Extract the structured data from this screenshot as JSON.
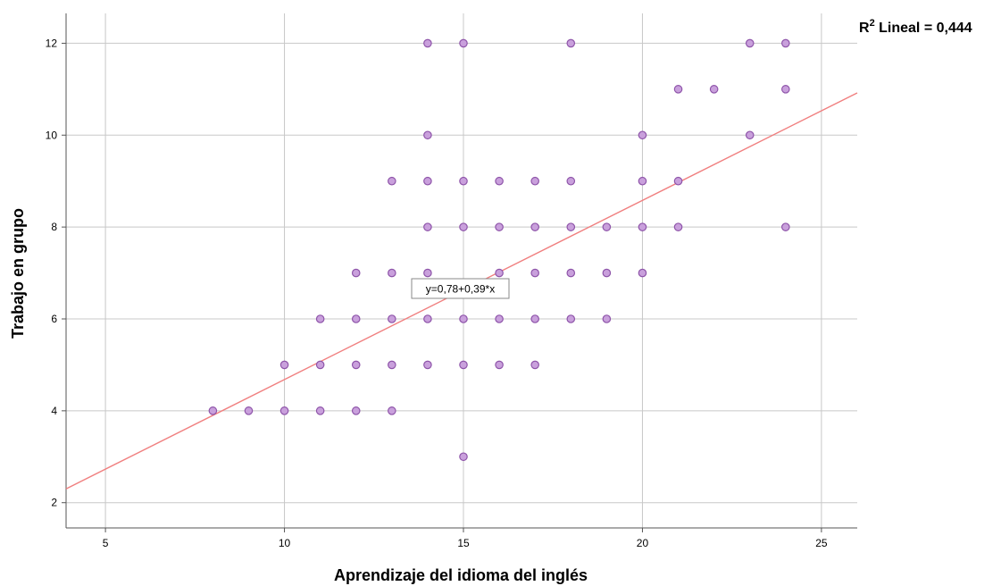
{
  "chart_data": {
    "type": "scatter",
    "xlabel": "Aprendizaje del idioma del inglés",
    "ylabel": "Trabajo en grupo",
    "xlim": [
      3.9,
      26.0
    ],
    "ylim": [
      1.45,
      12.65
    ],
    "x_ticks": [
      "5",
      "10",
      "15",
      "20",
      "25"
    ],
    "y_ticks": [
      "2",
      "4",
      "6",
      "8",
      "10",
      "12"
    ],
    "grid": true,
    "points": [
      [
        8,
        4
      ],
      [
        9,
        4
      ],
      [
        10,
        4
      ],
      [
        11,
        4
      ],
      [
        12,
        4
      ],
      [
        13,
        4
      ],
      [
        10,
        5
      ],
      [
        11,
        5
      ],
      [
        12,
        5
      ],
      [
        13,
        5
      ],
      [
        14,
        5
      ],
      [
        15,
        5
      ],
      [
        16,
        5
      ],
      [
        17,
        5
      ],
      [
        11,
        6
      ],
      [
        12,
        6
      ],
      [
        13,
        6
      ],
      [
        14,
        6
      ],
      [
        15,
        6
      ],
      [
        16,
        6
      ],
      [
        17,
        6
      ],
      [
        18,
        6
      ],
      [
        19,
        6
      ],
      [
        12,
        7
      ],
      [
        13,
        7
      ],
      [
        14,
        7
      ],
      [
        16,
        7
      ],
      [
        17,
        7
      ],
      [
        18,
        7
      ],
      [
        19,
        7
      ],
      [
        20,
        7
      ],
      [
        14,
        8
      ],
      [
        15,
        8
      ],
      [
        16,
        8
      ],
      [
        17,
        8
      ],
      [
        18,
        8
      ],
      [
        19,
        8
      ],
      [
        20,
        8
      ],
      [
        21,
        8
      ],
      [
        24,
        8
      ],
      [
        13,
        9
      ],
      [
        14,
        9
      ],
      [
        15,
        9
      ],
      [
        16,
        9
      ],
      [
        17,
        9
      ],
      [
        18,
        9
      ],
      [
        20,
        9
      ],
      [
        21,
        9
      ],
      [
        14,
        10
      ],
      [
        20,
        10
      ],
      [
        23,
        10
      ],
      [
        21,
        11
      ],
      [
        22,
        11
      ],
      [
        24,
        11
      ],
      [
        14,
        12
      ],
      [
        15,
        12
      ],
      [
        18,
        12
      ],
      [
        23,
        12
      ],
      [
        24,
        12
      ],
      [
        15,
        3
      ]
    ],
    "fit_line": {
      "intercept": 0.78,
      "slope": 0.39
    },
    "equation_label": "y=0,78+0,39*x",
    "r2_prefix": "R",
    "r2_superscript": "2",
    "r2_suffix": " Lineal = 0,444",
    "colors": {
      "point_fill": "#c9a0dc",
      "point_stroke": "#8e54a9",
      "fit_line": "#f07f7f",
      "grid": "#c8c8c8",
      "axis": "#555555"
    }
  }
}
